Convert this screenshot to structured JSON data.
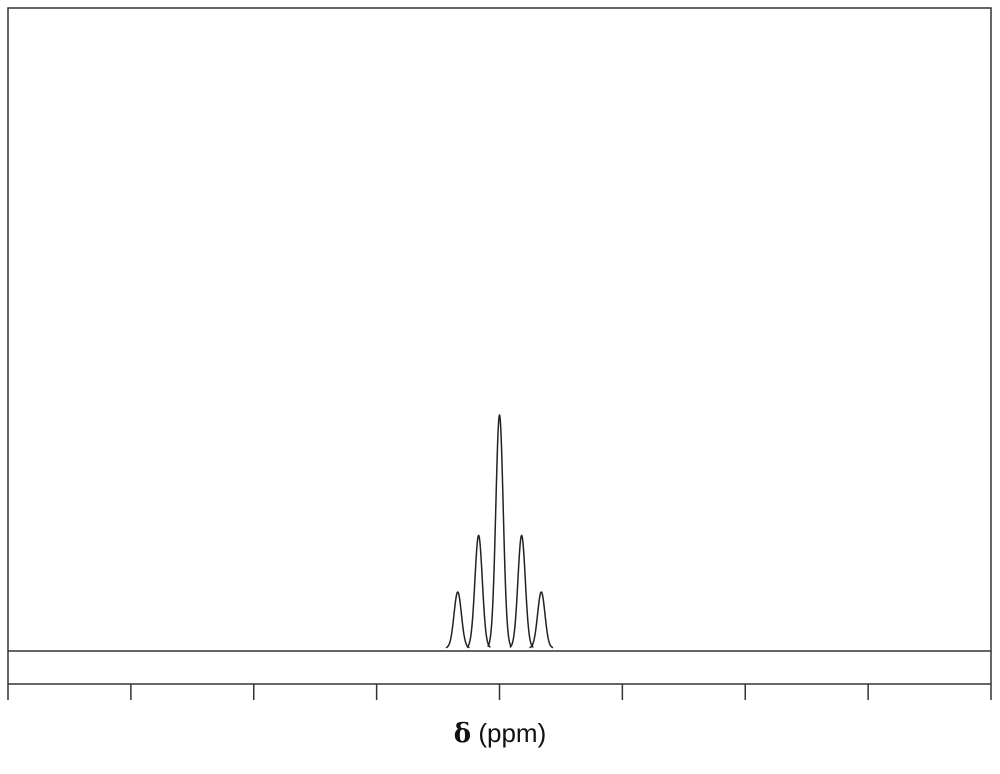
{
  "chart_data": {
    "type": "line",
    "title": "",
    "xlabel_symbol": "δ",
    "xlabel_unit": "(ppm)",
    "ylabel": "",
    "xlim": [
      0,
      8
    ],
    "ylim": [
      0,
      1
    ],
    "x_ticks": [
      0,
      1,
      2,
      3,
      4,
      5,
      6,
      7,
      8
    ],
    "x_tick_labels": [],
    "grid": false,
    "legend": "none",
    "series": [
      {
        "multiplicity": "quintet",
        "center": 4.0,
        "peaks": [
          {
            "x": 3.66,
            "height": 0.25
          },
          {
            "x": 3.83,
            "height": 0.49
          },
          {
            "x": 4.0,
            "height": 1.0
          },
          {
            "x": 4.18,
            "height": 0.49
          },
          {
            "x": 4.34,
            "height": 0.25
          }
        ],
        "peak_width": 0.03
      }
    ]
  }
}
